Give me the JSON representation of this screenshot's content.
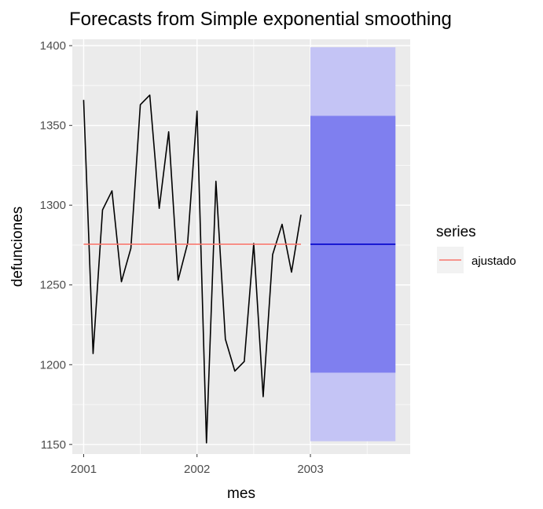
{
  "chart_data": {
    "type": "line",
    "title": "Forecasts from Simple exponential smoothing",
    "xlabel": "mes",
    "ylabel": "defunciones",
    "xlim": [
      2000.9,
      2003.88
    ],
    "ylim": [
      1144,
      1404
    ],
    "x_ticks": [
      2001,
      2002,
      2003
    ],
    "x_tick_labels": [
      "2001",
      "2002",
      "2003"
    ],
    "y_ticks": [
      1150,
      1200,
      1250,
      1300,
      1350,
      1400
    ],
    "y_tick_labels": [
      "1150",
      "1200",
      "1250",
      "1300",
      "1350",
      "1400"
    ],
    "grid": true,
    "background": "#ebebeb",
    "observed": {
      "color": "#000000",
      "x": [
        2001.0,
        2001.0833,
        2001.1667,
        2001.25,
        2001.3333,
        2001.4167,
        2001.5,
        2001.5833,
        2001.6667,
        2001.75,
        2001.8333,
        2001.9167,
        2002.0,
        2002.0833,
        2002.1667,
        2002.25,
        2002.3333,
        2002.4167,
        2002.5,
        2002.5833,
        2002.6667,
        2002.75,
        2002.8333,
        2002.9167
      ],
      "y": [
        1366,
        1207,
        1297,
        1309,
        1252,
        1273,
        1363,
        1369,
        1298,
        1346,
        1253,
        1276,
        1359,
        1151,
        1315,
        1216,
        1196,
        1202,
        1276,
        1180,
        1269,
        1288,
        1258,
        1294
      ]
    },
    "series": [
      {
        "name": "ajustado",
        "color": "#f8766d",
        "x": [
          2001.0,
          2002.9167
        ],
        "y": [
          1275.5,
          1275.5
        ]
      }
    ],
    "forecast": {
      "x": [
        2003.0,
        2003.75
      ],
      "mean": 1275.5,
      "mean_color": "#0000cc",
      "interval_80": [
        1195,
        1356
      ],
      "interval_95": [
        1152,
        1399
      ],
      "color_80": "#7f7fef",
      "color_95": "#c4c4f5"
    },
    "legend": {
      "title": "series",
      "placement": "right",
      "entries": [
        "ajustado"
      ]
    }
  }
}
